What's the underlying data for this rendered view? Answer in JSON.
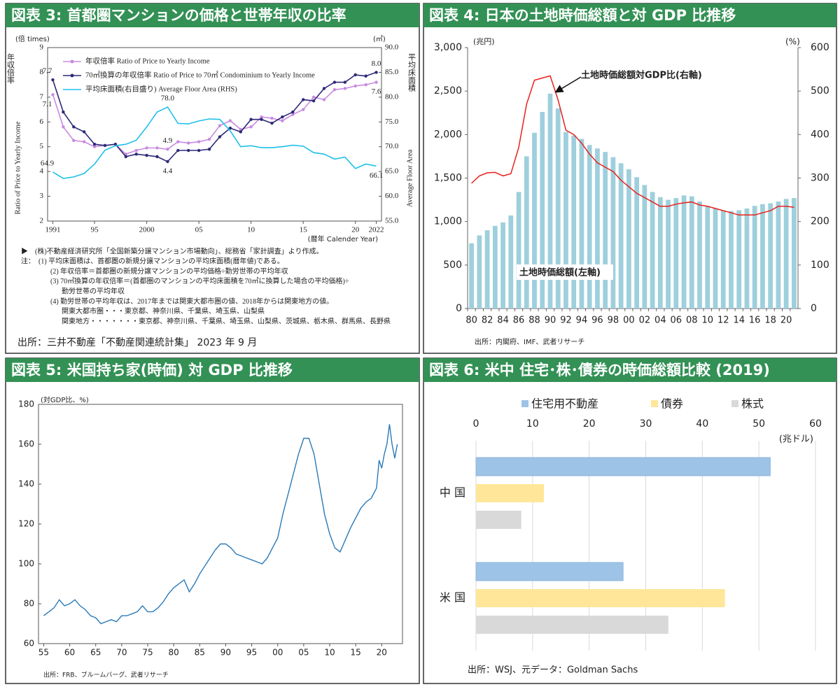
{
  "chart_data": [
    {
      "type": "line",
      "title": "図表 3: 首都圏マンションの価格と世帯年収の比率",
      "x": [
        1991,
        1992,
        1993,
        1994,
        1995,
        1996,
        1997,
        1998,
        1999,
        2000,
        2001,
        2002,
        2003,
        2004,
        2005,
        2006,
        2007,
        2008,
        2009,
        2010,
        2011,
        2012,
        2013,
        2014,
        2015,
        2016,
        2017,
        2018,
        2019,
        2020,
        2021,
        2022
      ],
      "series": [
        {
          "name": "年収倍率 Ratio of Price to Yearly Income",
          "color": "#c78be0",
          "markers": true,
          "values": [
            7.1,
            5.8,
            5.25,
            5.2,
            5.0,
            5.05,
            5.1,
            4.7,
            4.85,
            4.95,
            4.95,
            4.9,
            5.2,
            5.15,
            5.2,
            5.3,
            5.85,
            6.05,
            5.7,
            5.8,
            6.2,
            6.15,
            6.05,
            6.3,
            6.5,
            7.0,
            6.9,
            7.3,
            7.35,
            7.45,
            7.5,
            7.6
          ],
          "value_labels": [
            "7.1",
            null,
            null,
            null,
            null,
            null,
            null,
            null,
            null,
            null,
            null,
            "4.9",
            null,
            null,
            null,
            null,
            null,
            null,
            null,
            null,
            null,
            null,
            null,
            null,
            null,
            null,
            null,
            null,
            null,
            null,
            null,
            "7.6"
          ]
        },
        {
          "name": "70㎡換算の年収倍率 Ratio of Price to 70㎡ Condominium to Yearly Income",
          "color": "#2e2a78",
          "markers": true,
          "values": [
            7.7,
            6.4,
            5.8,
            5.6,
            5.1,
            5.05,
            5.1,
            4.6,
            4.7,
            4.65,
            4.6,
            4.4,
            4.85,
            4.85,
            4.85,
            4.9,
            5.4,
            5.75,
            5.6,
            6.1,
            6.1,
            5.95,
            6.2,
            6.4,
            6.9,
            6.85,
            7.35,
            7.6,
            7.6,
            7.9,
            7.85,
            8.0
          ],
          "value_labels": [
            "7.7",
            null,
            null,
            null,
            null,
            null,
            null,
            null,
            null,
            null,
            null,
            "4.4",
            null,
            null,
            null,
            null,
            null,
            null,
            null,
            null,
            null,
            null,
            null,
            null,
            null,
            null,
            null,
            null,
            null,
            null,
            null,
            "8.0"
          ]
        },
        {
          "name": "平均床面積(右目盛り) Average Floor Area (RHS)",
          "color": "#1ec0ea",
          "axis": "y2",
          "markers": false,
          "values": [
            64.9,
            63.6,
            63.9,
            64.6,
            66.5,
            69.3,
            70.2,
            70.5,
            71.3,
            74.0,
            77.0,
            78.0,
            74.7,
            74.6,
            75.2,
            75.6,
            75.5,
            73.2,
            70.0,
            70.2,
            69.8,
            69.8,
            70.0,
            70.3,
            70.1,
            68.8,
            68.5,
            67.5,
            67.9,
            65.6,
            66.5,
            66.1
          ],
          "value_labels": [
            "64.9",
            null,
            null,
            null,
            null,
            null,
            null,
            null,
            null,
            null,
            null,
            "78.0",
            null,
            null,
            null,
            null,
            null,
            null,
            null,
            null,
            null,
            null,
            null,
            null,
            null,
            null,
            null,
            null,
            null,
            null,
            null,
            "66.1"
          ]
        }
      ],
      "xlim": [
        1990.5,
        2022.5
      ],
      "xticks": [
        1991,
        {
          "value": 1995,
          "label": "95"
        },
        2000,
        {
          "value": 2005,
          "label": "05"
        },
        {
          "value": 2010,
          "label": "10"
        },
        {
          "value": 2015,
          "label": "15"
        },
        {
          "value": 2020,
          "label": "20"
        },
        2022
      ],
      "ylim": [
        2,
        9
      ],
      "yticks": [
        2,
        3,
        4,
        5,
        6,
        7,
        8,
        9
      ],
      "y2lim": [
        55,
        90
      ],
      "y2ticks": [
        {
          "value": 55,
          "label": "55.0"
        },
        {
          "value": 60,
          "label": "60.0"
        },
        {
          "value": 65,
          "label": "65.0"
        },
        {
          "value": 70,
          "label": "70.0"
        },
        {
          "value": 75,
          "label": "75.0"
        },
        {
          "value": 80,
          "label": "80.0"
        },
        {
          "value": 85,
          "label": "85.0"
        },
        {
          "value": 90,
          "label": "90.0"
        }
      ],
      "y_unit": "(倍 times)",
      "y2_unit": "(㎡)",
      "ylabel_ja": "年収倍率",
      "ylabel": "Ratio of Price to Yearly Income",
      "y2label_ja": "平均床面積",
      "y2label": "Average Floor Area",
      "xlabel": "(暦年 Calender Year)",
      "legend": "upper left",
      "notes": [
        "▶　(株)不動産経済研究所「全国新築分譲マンション市場動向」、総務省「家計調査」より作成。",
        "注：　(1) 平均床面積は、首都圏の新規分譲マンションの平均床面積(暦年値)である。",
        "(2) 年収倍率＝首都圏の新規分譲マンションの平均価格÷勤労世帯の平均年収",
        "(3) 70㎡換算の年収倍率＝(首都圏のマンションの平均床面積を70㎡に換算した場合の平均価格)÷",
        "勤労世帯の平均年収",
        "(4) 勤労世帯の平均年収は、2017年までは関東大都市圏の値、2018年からは関東地方の値。",
        "関東大都市圏・・・東京都、神奈川県、千葉県、埼玉県、山梨県",
        "関東地方・・・・・・・東京都、神奈川県、千葉県、埼玉県、山梨県、茨城県、栃木県、群馬県、長野県"
      ],
      "source": "出所：三井不動産「不動産関連統計集」 2023 年 9 月"
    },
    {
      "type": "combo",
      "title": "図表 4: 日本の土地時価総額と対 GDP 比推移",
      "categories": [
        "80",
        null,
        "82",
        null,
        "84",
        null,
        "86",
        null,
        "88",
        null,
        "90",
        null,
        "92",
        null,
        "94",
        null,
        "96",
        null,
        "98",
        null,
        "00",
        null,
        "02",
        null,
        "04",
        null,
        "06",
        null,
        "08",
        null,
        "10",
        null,
        "12",
        null,
        "14",
        null,
        "16",
        null,
        "18",
        null,
        "20",
        null
      ],
      "series": [
        {
          "name": "土地時価総額(左軸)",
          "color": "#9ecfdc",
          "values": [
            750,
            840,
            900,
            950,
            990,
            1070,
            1340,
            1750,
            2020,
            2260,
            2470,
            2300,
            2030,
            1990,
            1950,
            1880,
            1840,
            1800,
            1740,
            1670,
            1600,
            1510,
            1420,
            1340,
            1280,
            1250,
            1270,
            1300,
            1290,
            1230,
            1180,
            1150,
            1130,
            1120,
            1130,
            1150,
            1180,
            1200,
            1210,
            1230,
            1260,
            1270
          ]
        },
        {
          "name": "土地時価総額対GDP比(右軸)",
          "color": "#e8201c",
          "axis": "y2",
          "values": [
            288,
            305,
            312,
            313,
            305,
            310,
            370,
            470,
            525,
            530,
            535,
            480,
            410,
            400,
            380,
            355,
            335,
            325,
            315,
            295,
            280,
            265,
            255,
            245,
            235,
            235,
            240,
            243,
            245,
            238,
            235,
            230,
            225,
            220,
            215,
            215,
            215,
            220,
            225,
            235,
            235,
            233
          ]
        }
      ],
      "ylim": [
        0,
        3000
      ],
      "yticks": [
        0,
        500,
        {
          "value": 1000,
          "label": "1,000"
        },
        {
          "value": 1500,
          "label": "1,500"
        },
        {
          "value": 2000,
          "label": "2,000"
        },
        {
          "value": 2500,
          "label": "2,500"
        },
        {
          "value": 3000,
          "label": "3,000"
        }
      ],
      "y2lim": [
        0,
        600
      ],
      "y2ticks": [
        0,
        100,
        200,
        300,
        400,
        500,
        600
      ],
      "y_unit": "(兆円)",
      "y2_unit": "(%)",
      "source": "出所：内閣府、IMF、武者リサーチ"
    },
    {
      "type": "line",
      "title": "図表 5: 米国持ち家(時価) 対 GDP 比推移",
      "x": [
        1955,
        1956,
        1957,
        1958,
        1959,
        1960,
        1961,
        1962,
        1963,
        1964,
        1965,
        1966,
        1967,
        1968,
        1969,
        1970,
        1971,
        1972,
        1973,
        1974,
        1975,
        1976,
        1977,
        1978,
        1979,
        1980,
        1981,
        1982,
        1983,
        1984,
        1985,
        1986,
        1987,
        1988,
        1989,
        1990,
        1991,
        1992,
        1993,
        1994,
        1995,
        1996,
        1997,
        1998,
        1999,
        2000,
        2001,
        2002,
        2003,
        2004,
        2005,
        2006,
        2007,
        2008,
        2009,
        2010,
        2011,
        2012,
        2013,
        2014,
        2015,
        2016,
        2017,
        2018,
        2019,
        2019.5,
        2020,
        2020.5,
        2021,
        2021.5,
        2022,
        2022.5,
        2023
      ],
      "values": [
        74,
        76,
        78,
        82,
        79,
        80,
        82,
        79,
        77,
        74,
        73,
        70,
        71,
        72,
        71,
        74,
        74,
        75,
        76,
        79,
        76,
        76,
        78,
        81,
        85,
        88,
        90,
        92,
        86,
        90,
        95,
        99,
        103,
        107,
        110,
        110,
        108,
        105,
        104,
        103,
        102,
        101,
        100,
        103,
        108,
        113,
        125,
        135,
        145,
        155,
        163,
        163,
        155,
        140,
        125,
        115,
        108,
        106,
        112,
        118,
        123,
        128,
        131,
        133,
        138,
        152,
        148,
        155,
        160,
        170,
        160,
        153,
        160
      ],
      "color": "#2a7ab8",
      "xlim": [
        1954,
        2024
      ],
      "xticks": [
        {
          "value": 1955,
          "label": "55"
        },
        {
          "value": 1960,
          "label": "60"
        },
        {
          "value": 1965,
          "label": "65"
        },
        {
          "value": 1970,
          "label": "70"
        },
        {
          "value": 1975,
          "label": "75"
        },
        {
          "value": 1980,
          "label": "80"
        },
        {
          "value": 1985,
          "label": "85"
        },
        {
          "value": 1990,
          "label": "90"
        },
        {
          "value": 1995,
          "label": "95"
        },
        {
          "value": 2000,
          "label": "00"
        },
        {
          "value": 2005,
          "label": "05"
        },
        {
          "value": 2010,
          "label": "10"
        },
        {
          "value": 2015,
          "label": "15"
        },
        {
          "value": 2020,
          "label": "20"
        }
      ],
      "ylim": [
        60,
        180
      ],
      "yticks": [
        60,
        80,
        100,
        120,
        140,
        160,
        180
      ],
      "y_unit": "(対GDP比、%)",
      "source": "出所：FRB、ブルームバーグ、武者リサーチ"
    },
    {
      "type": "hbar",
      "title": "図表 6: 米中 住宅･株･債券の時価総額比較 (2019)",
      "categories": [
        "中 国",
        "米 国"
      ],
      "series": [
        {
          "name": "住宅用不動産",
          "color": "#9dc3e6",
          "values": [
            52,
            26
          ]
        },
        {
          "name": "債券",
          "color": "#ffe699",
          "values": [
            12,
            44
          ]
        },
        {
          "name": "株式",
          "color": "#d9d9d9",
          "values": [
            8,
            34
          ]
        }
      ],
      "xlim": [
        0,
        60
      ],
      "xticks": [
        0,
        10,
        20,
        30,
        40,
        50,
        60
      ],
      "grid": true,
      "legend": "top",
      "x_unit": "(兆ドル)",
      "source": "出所：WSJ、元データ：Goldman Sachs"
    }
  ]
}
